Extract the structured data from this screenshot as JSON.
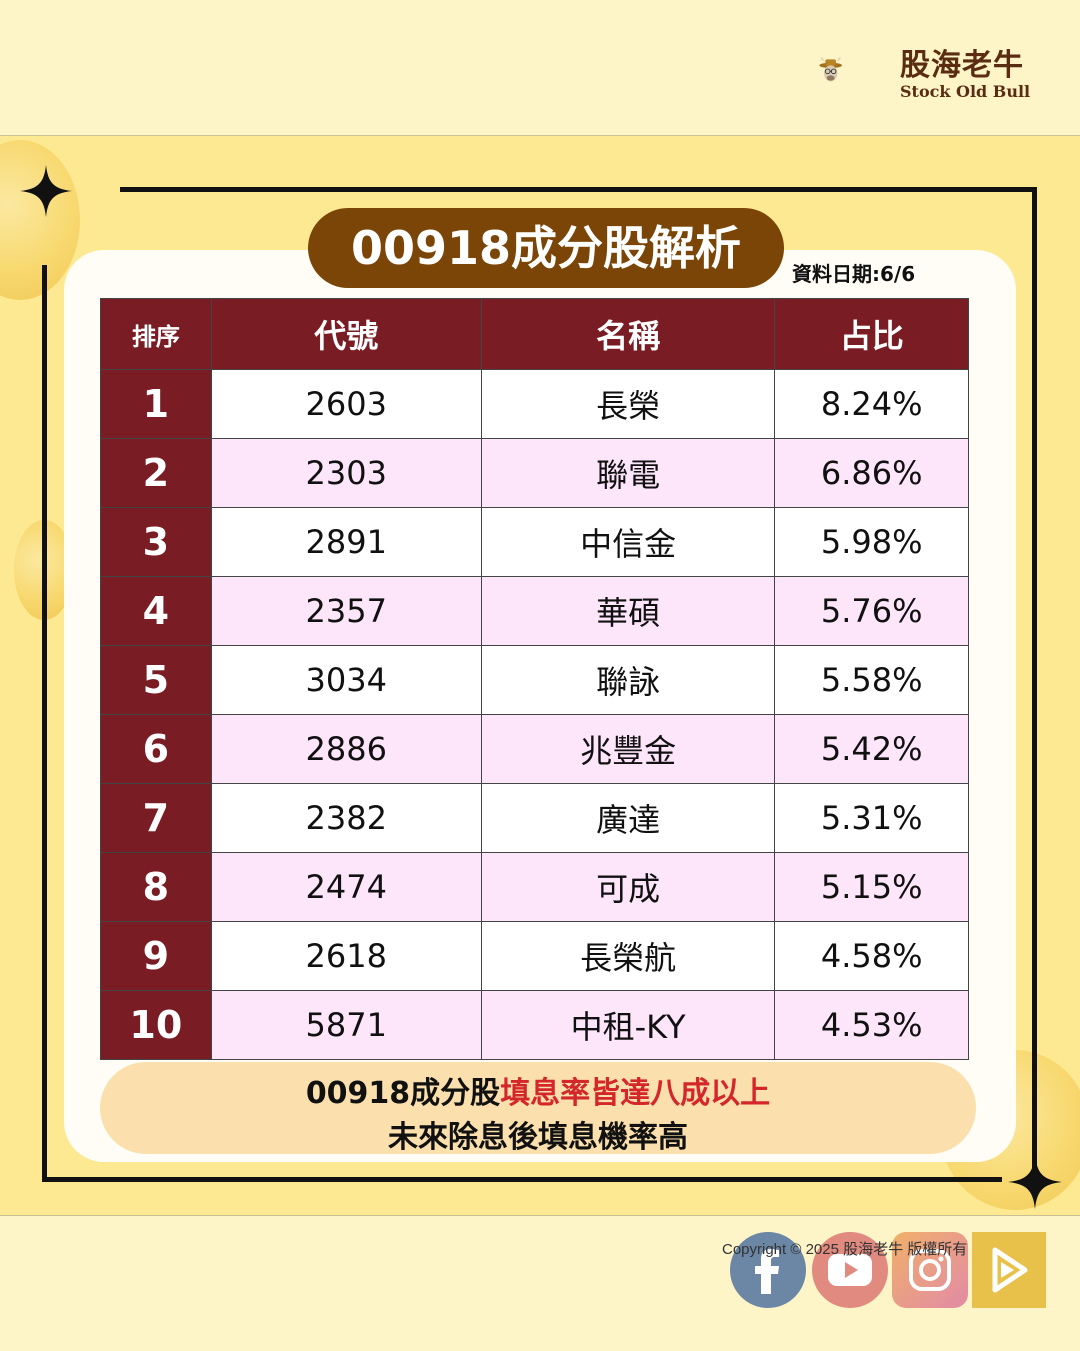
{
  "brand": {
    "name": "股海老牛",
    "subtitle": "Stock Old Bull"
  },
  "title": "00918成分股解析",
  "data_date": "資料日期:6/6",
  "table": {
    "headers": {
      "rank": "排序",
      "code": "代號",
      "name": "名稱",
      "pct": "占比"
    },
    "rows": [
      {
        "rank": "1",
        "code": "2603",
        "name": "長榮",
        "pct": "8.24%"
      },
      {
        "rank": "2",
        "code": "2303",
        "name": "聯電",
        "pct": "6.86%"
      },
      {
        "rank": "3",
        "code": "2891",
        "name": "中信金",
        "pct": "5.98%"
      },
      {
        "rank": "4",
        "code": "2357",
        "name": "華碩",
        "pct": "5.76%"
      },
      {
        "rank": "5",
        "code": "3034",
        "name": "聯詠",
        "pct": "5.58%"
      },
      {
        "rank": "6",
        "code": "2886",
        "name": "兆豐金",
        "pct": "5.42%"
      },
      {
        "rank": "7",
        "code": "2382",
        "name": "廣達",
        "pct": "5.31%"
      },
      {
        "rank": "8",
        "code": "2474",
        "name": "可成",
        "pct": "5.15%"
      },
      {
        "rank": "9",
        "code": "2618",
        "name": "長榮航",
        "pct": "4.58%"
      },
      {
        "rank": "10",
        "code": "5871",
        "name": "中租-KY",
        "pct": "4.53%"
      }
    ]
  },
  "note": {
    "line1_prefix": "00918成分股",
    "line1_highlight": "填息率皆達八成以上",
    "line2": "未來除息後填息機率高"
  },
  "footer": {
    "copyright": "Copyright © 2025 股海老牛 版權所有"
  },
  "social": [
    "facebook-icon",
    "youtube-icon",
    "instagram-icon",
    "play-icon"
  ],
  "colors": {
    "header_bg": "#7a1c23",
    "title_pill": "#7a4506",
    "alt_row": "#fde6fa",
    "highlight": "#d3272b",
    "background": "#fde992"
  }
}
